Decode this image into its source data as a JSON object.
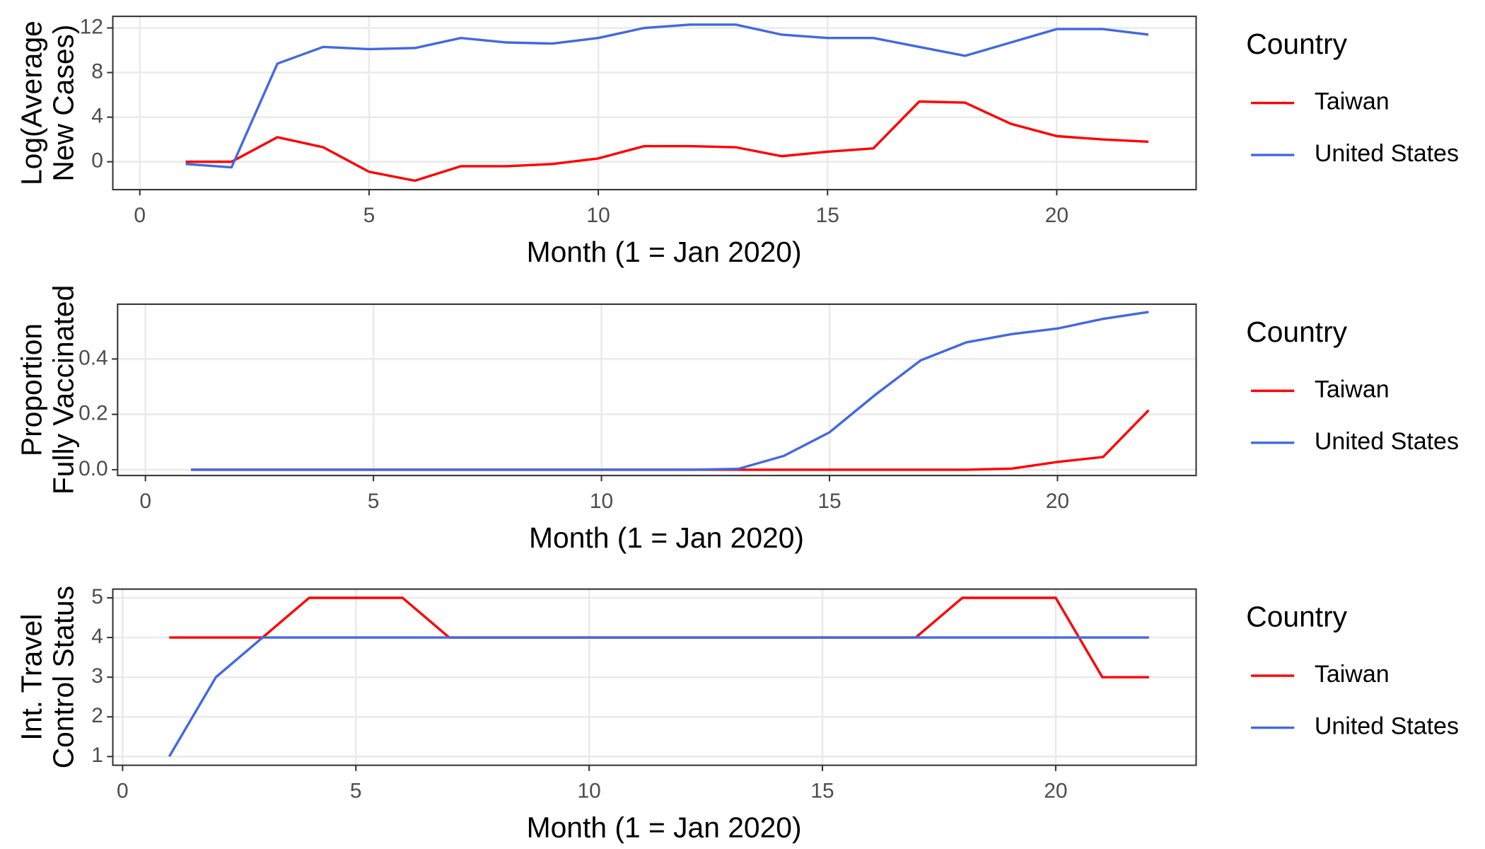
{
  "chart_data": [
    {
      "type": "line",
      "x": [
        1,
        2,
        3,
        4,
        5,
        6,
        7,
        8,
        9,
        10,
        11,
        12,
        13,
        14,
        15,
        16,
        17,
        18,
        19,
        20,
        21,
        22
      ],
      "series": [
        {
          "name": "Taiwan",
          "color": "#ff0000",
          "values": [
            0,
            0,
            2.2,
            1.3,
            -0.9,
            -1.7,
            -0.4,
            -0.4,
            -0.2,
            0.3,
            1.4,
            1.4,
            1.3,
            0.5,
            0.9,
            1.2,
            5.4,
            5.3,
            3.4,
            2.3,
            2.0,
            1.8
          ]
        },
        {
          "name": "United States",
          "color": "#4169e1",
          "values": [
            -0.2,
            -0.5,
            8.8,
            10.3,
            10.1,
            10.2,
            11.1,
            10.7,
            10.6,
            11.1,
            12.0,
            12.3,
            12.3,
            11.4,
            11.1,
            11.1,
            10.3,
            9.5,
            10.7,
            11.9,
            11.9,
            11.4
          ]
        }
      ],
      "xlim": [
        -0.59,
        23.04
      ],
      "ylim": [
        -2.5,
        13.04
      ],
      "xticks": [
        0,
        5,
        10,
        15,
        20
      ],
      "yticks": [
        0,
        4,
        8,
        12
      ],
      "x_label": "Month (1 = Jan 2020)",
      "y_label": [
        "Log(Average",
        "New Cases)"
      ],
      "legend_title": "Country",
      "grid": true
    },
    {
      "type": "line",
      "x": [
        1,
        2,
        3,
        4,
        5,
        6,
        7,
        8,
        9,
        10,
        11,
        12,
        13,
        14,
        15,
        16,
        17,
        18,
        19,
        20,
        21,
        22
      ],
      "series": [
        {
          "name": "Taiwan",
          "color": "#ff0000",
          "values": [
            0,
            0,
            0,
            0,
            0,
            0,
            0,
            0,
            0,
            0,
            0,
            0,
            0,
            0,
            0,
            0,
            0,
            0,
            0.004,
            0.028,
            0.046,
            0.215
          ]
        },
        {
          "name": "United States",
          "color": "#4169e1",
          "values": [
            0,
            0,
            0,
            0,
            0,
            0,
            0,
            0,
            0,
            0,
            0,
            0,
            0.003,
            0.05,
            0.135,
            0.27,
            0.395,
            0.46,
            0.49,
            0.51,
            0.545,
            0.57
          ]
        }
      ],
      "xlim": [
        -0.61,
        23.04
      ],
      "ylim": [
        -0.021,
        0.598
      ],
      "xticks": [
        0,
        5,
        10,
        15,
        20
      ],
      "yticks": [
        {
          "value": 0,
          "label": "0.0"
        },
        0.2,
        0.4
      ],
      "x_label": "Month (1 = Jan 2020)",
      "y_label": [
        "Proportion",
        "Fully Vaccinated"
      ],
      "legend_title": "Country",
      "grid": true
    },
    {
      "type": "line",
      "x": [
        1,
        2,
        3,
        4,
        5,
        6,
        7,
        8,
        9,
        10,
        11,
        12,
        13,
        14,
        15,
        16,
        17,
        18,
        19,
        20,
        21,
        22
      ],
      "series": [
        {
          "name": "Taiwan",
          "color": "#ff0000",
          "values": [
            4,
            4,
            4,
            5,
            5,
            5,
            4,
            4,
            4,
            4,
            4,
            4,
            4,
            4,
            4,
            4,
            4,
            5,
            5,
            5,
            3,
            3
          ]
        },
        {
          "name": "United States",
          "color": "#4169e1",
          "values": [
            1,
            3,
            4,
            4,
            4,
            4,
            4,
            4,
            4,
            4,
            4,
            4,
            4,
            4,
            4,
            4,
            4,
            4,
            4,
            4,
            4,
            4
          ]
        }
      ],
      "xlim": [
        -0.21,
        23.01
      ],
      "ylim": [
        0.78,
        5.22
      ],
      "xticks": [
        0,
        5,
        10,
        15,
        20
      ],
      "yticks": [
        1,
        2,
        3,
        4,
        5
      ],
      "x_label": "Month (1 = Jan 2020)",
      "y_label": [
        "Int. Travel",
        "Control Status"
      ],
      "legend_title": "Country",
      "grid": true
    }
  ]
}
